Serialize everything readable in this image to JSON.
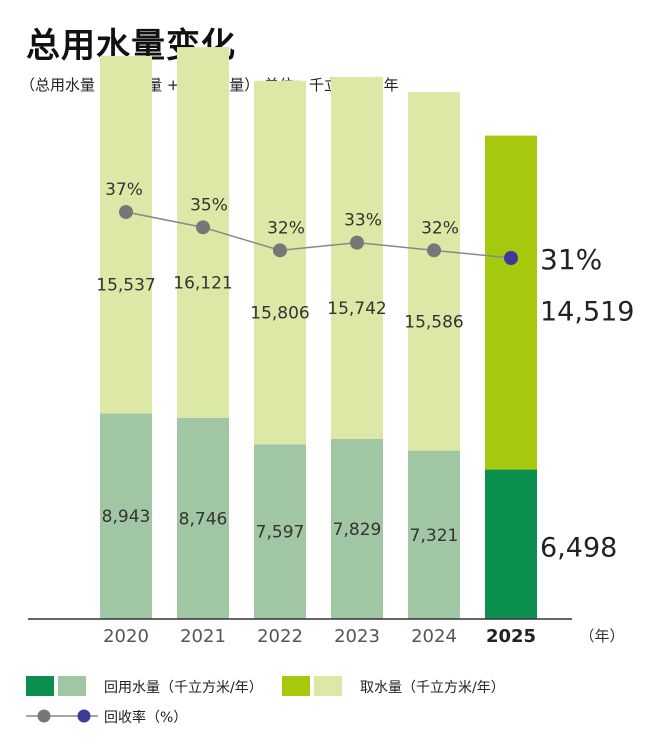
{
  "header": {
    "title": "总用水量变化",
    "subtitle": "（总用水量 = 取水量 + 回用水量） 单位：千立方米 / 年"
  },
  "colors": {
    "recycled": "#a0c6a4",
    "recycled_highlight": "#0a8f4e",
    "withdrawal": "#dce8a6",
    "withdrawal_highlight": "#a6c90d",
    "rate_line": "#888888",
    "rate_dot": "#777777",
    "rate_dot_highlight": "#3d3b9a",
    "baseline": "#333333"
  },
  "chart_data": {
    "type": "bar",
    "stacked": true,
    "categories": [
      "2020",
      "2021",
      "2022",
      "2023",
      "2024",
      "2025"
    ],
    "highlight_category": "2025",
    "x_unit": "（年）",
    "series": [
      {
        "name": "回用水量（千立方米/年）",
        "values": [
          8943,
          8746,
          7597,
          7829,
          7321,
          6498
        ],
        "labels": [
          "8,943",
          "8,746",
          "7,597",
          "7,829",
          "7,321",
          "6,498"
        ]
      },
      {
        "name": "取水量（千立方米/年）",
        "values": [
          15537,
          16121,
          15806,
          15742,
          15586,
          14519
        ],
        "labels": [
          "15,537",
          "16,121",
          "15,806",
          "15,742",
          "15,586",
          "14,519"
        ]
      }
    ],
    "rate_series": {
      "name": "回收率（%）",
      "values": [
        37,
        35,
        32,
        33,
        32,
        31
      ],
      "labels": [
        "37%",
        "35%",
        "32%",
        "33%",
        "32%",
        "31%"
      ]
    },
    "ylim": [
      0,
      26000
    ]
  }
}
